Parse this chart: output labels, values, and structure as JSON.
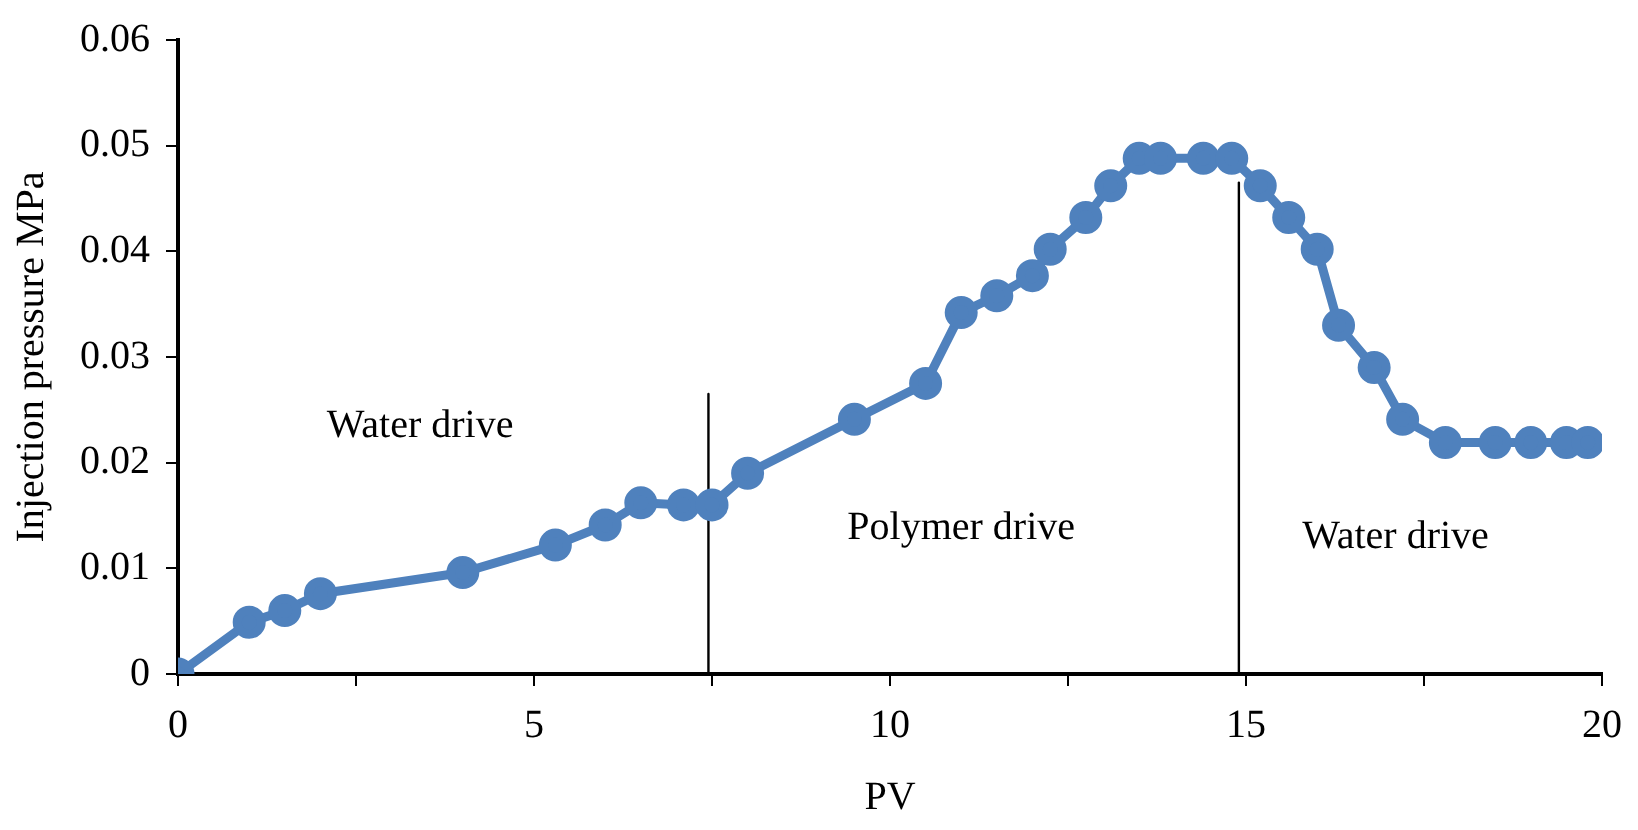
{
  "chart_data": {
    "type": "line",
    "xlabel": "PV",
    "ylabel": "Injection pressure MPa",
    "xlim": [
      0,
      20
    ],
    "ylim": [
      0,
      0.06
    ],
    "xticks": [
      0,
      {
        "value": 2.5,
        "label": null
      },
      5,
      {
        "value": 7.5,
        "label": null
      },
      10,
      {
        "value": 12.5,
        "label": null
      },
      15,
      {
        "value": 17.5,
        "label": null
      },
      20
    ],
    "yticks": [
      0,
      0.01,
      0.02,
      0.03,
      0.04,
      0.05,
      0.06
    ],
    "grid": false,
    "legend": false,
    "marker": "circle",
    "line_style": "solid",
    "series": [
      {
        "color": "#4f81bd",
        "x": [
          0,
          1,
          1.5,
          2,
          4,
          5.3,
          6,
          6.5,
          7.1,
          7.5,
          8,
          9.5,
          10.5,
          11,
          11.5,
          12,
          12.25,
          12.75,
          13.1,
          13.5,
          13.8,
          14.4,
          14.8,
          15.2,
          15.6,
          16,
          16.3,
          16.8,
          17.2,
          17.8,
          18.5,
          19,
          19.5,
          19.8
        ],
        "values": [
          0,
          0.0049,
          0.006,
          0.0076,
          0.0096,
          0.0122,
          0.0141,
          0.0162,
          0.016,
          0.016,
          0.019,
          0.0241,
          0.0275,
          0.0342,
          0.0358,
          0.0377,
          0.0402,
          0.0432,
          0.0462,
          0.0488,
          0.0488,
          0.0488,
          0.0488,
          0.0462,
          0.0432,
          0.0402,
          0.033,
          0.029,
          0.0241,
          0.0219,
          0.0219,
          0.0219,
          0.0219,
          0.0219
        ]
      },
      {
        "type": "line",
        "color": "#000000",
        "marker": "none",
        "x": [
          7.45,
          7.45
        ],
        "values": [
          0,
          0.0265
        ]
      },
      {
        "type": "line",
        "color": "#000000",
        "marker": "none",
        "x": [
          14.9,
          14.9
        ],
        "values": [
          0,
          0.0465
        ]
      }
    ],
    "annotations": [
      "Water drive",
      "Polymer drive",
      "Water drive"
    ]
  }
}
